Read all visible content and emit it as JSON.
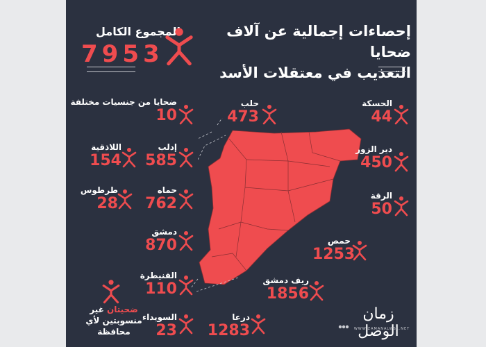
{
  "title": {
    "line1": "إحصاءات إجمالية عن آلاف ضحايا",
    "line2": "التعذيب في معتقلات الأسد"
  },
  "total": {
    "label": "المجموع الكامل",
    "value": "7953"
  },
  "stats": [
    {
      "label": "ضحايا من جنسيات مختلفة",
      "value": "10"
    },
    {
      "label": "حلب",
      "value": "473"
    },
    {
      "label": "الحسكة",
      "value": "44"
    },
    {
      "label": "اللاذقية",
      "value": "154"
    },
    {
      "label": "إدلب",
      "value": "585"
    },
    {
      "label": "دير الزور",
      "value": "450"
    },
    {
      "label": "طرطوس",
      "value": "28"
    },
    {
      "label": "حماه",
      "value": "762"
    },
    {
      "label": "الرقة",
      "value": "50"
    },
    {
      "label": "دمشق",
      "value": "870"
    },
    {
      "label": "حمص",
      "value": "1253"
    },
    {
      "label": "القنيطرة",
      "value": "110"
    },
    {
      "label": "ريف دمشق",
      "value": "1856"
    },
    {
      "label": "السويداء",
      "value": "23"
    },
    {
      "label": "درعا",
      "value": "1283"
    }
  ],
  "unassigned": {
    "red": "ضحيتان",
    "rest": "غير منسوبتين لأي محافظة"
  },
  "logo": {
    "text": "زمان الوصل",
    "url": "WWW.ZAMANALWSL.NET"
  },
  "colors": {
    "background": "#2b3140",
    "accent": "#ef4c4f",
    "text": "#ffffff"
  },
  "icons": [
    "x-figure-icon",
    "syria-map",
    "social-icons"
  ]
}
